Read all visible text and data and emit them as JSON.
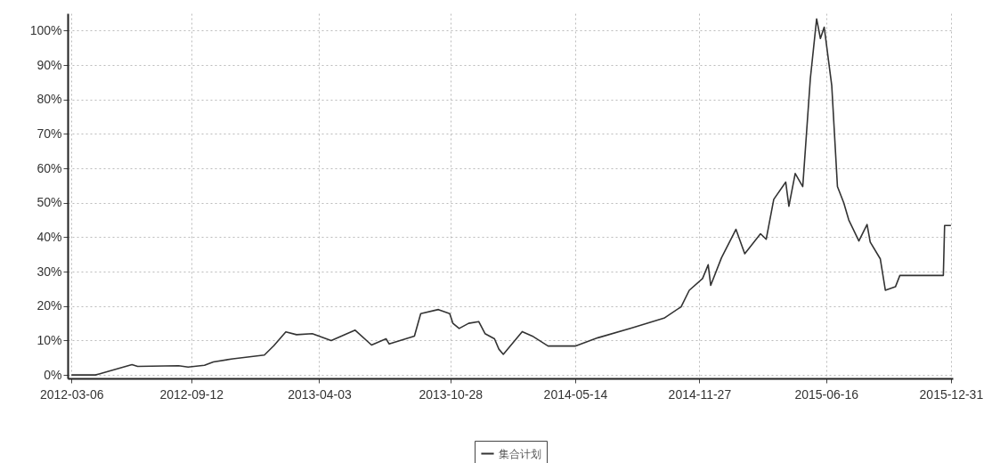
{
  "chart_data": {
    "type": "line",
    "x": [
      "2012-03-06",
      "2012-04-13",
      "2012-04-19",
      "2012-06-10",
      "2012-06-19",
      "2012-08-23",
      "2012-09-07",
      "2012-10-03",
      "2012-10-17",
      "2012-11-17",
      "2013-01-06",
      "2013-01-21",
      "2013-02-09",
      "2013-02-26",
      "2013-03-23",
      "2013-04-22",
      "2013-05-30",
      "2013-06-25",
      "2013-07-18",
      "2013-07-23",
      "2013-09-01",
      "2013-09-11",
      "2013-10-09",
      "2013-10-27",
      "2013-11-01",
      "2013-11-11",
      "2013-11-26",
      "2013-12-12",
      "2013-12-22",
      "2014-01-06",
      "2014-01-13",
      "2014-01-20",
      "2014-02-19",
      "2014-03-07",
      "2014-04-01",
      "2014-05-14",
      "2014-06-19",
      "2014-08-11",
      "2014-10-02",
      "2014-10-29",
      "2014-11-11",
      "2014-12-02",
      "2014-12-11",
      "2014-12-15",
      "2015-01-01",
      "2015-01-24",
      "2015-02-07",
      "2015-03-04",
      "2015-03-13",
      "2015-03-25",
      "2015-04-13",
      "2015-04-18",
      "2015-04-28",
      "2015-05-10",
      "2015-05-22",
      "2015-06-01",
      "2015-06-07",
      "2015-06-13",
      "2015-06-25",
      "2015-07-04",
      "2015-07-14",
      "2015-07-22",
      "2015-08-07",
      "2015-08-20",
      "2015-08-25",
      "2015-09-10",
      "2015-09-18",
      "2015-10-04",
      "2015-10-11",
      "2015-12-19",
      "2015-12-21",
      "2015-12-31"
    ],
    "series": [
      {
        "name": "集合计划",
        "color": "#333333",
        "values": [
          0,
          0,
          0.3,
          3,
          2.5,
          2.7,
          2.3,
          2.8,
          3.8,
          4.7,
          5.8,
          8.5,
          12.5,
          11.7,
          12,
          10,
          13,
          8.7,
          10.5,
          9,
          11.3,
          17.8,
          19,
          17.8,
          15,
          13.5,
          15,
          15.5,
          12,
          10.5,
          7.5,
          6,
          12.6,
          11.3,
          8.4,
          8.4,
          10.8,
          13.6,
          16.5,
          19.8,
          24.6,
          28,
          32,
          26,
          34,
          42.3,
          35.2,
          41,
          39.4,
          51,
          56,
          49,
          58.5,
          54.7,
          86,
          103.4,
          97.7,
          101,
          84,
          54.7,
          50,
          45,
          38.9,
          43.7,
          38.6,
          33.7,
          24.6,
          25.6,
          28.9,
          28.9,
          43.4,
          43.4
        ]
      }
    ],
    "xlim": [
      "2012-02-29",
      "2016-01-03"
    ],
    "xticks": [
      "2012-03-06",
      "2012-09-12",
      "2013-04-03",
      "2013-10-28",
      "2014-05-14",
      "2014-11-27",
      "2015-06-16",
      "2015-12-31"
    ],
    "ylim": [
      -1,
      105
    ],
    "yticks": [
      {
        "value": 0,
        "label": "0%"
      },
      {
        "value": 10,
        "label": "10%"
      },
      {
        "value": 20,
        "label": "20%"
      },
      {
        "value": 30,
        "label": "30%"
      },
      {
        "value": 40,
        "label": "40%"
      },
      {
        "value": 50,
        "label": "50%"
      },
      {
        "value": 60,
        "label": "60%"
      },
      {
        "value": 70,
        "label": "70%"
      },
      {
        "value": 80,
        "label": "80%"
      },
      {
        "value": 90,
        "label": "90%"
      },
      {
        "value": 100,
        "label": "100%"
      }
    ],
    "grid": true,
    "legend": "bottom"
  }
}
